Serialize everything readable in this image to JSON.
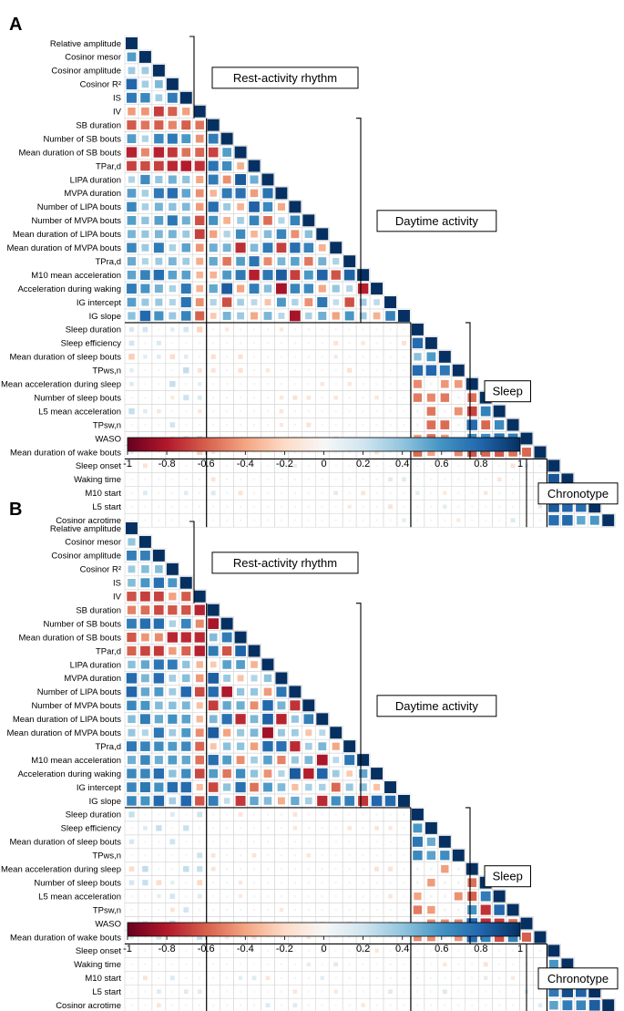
{
  "figure": {
    "variables": [
      "Relative amplitude",
      "Cosinor mesor",
      "Cosinor amplitude",
      "Cosinor R²",
      "IS",
      "IV",
      "SB duration",
      "Number of SB bouts",
      "Mean duration of SB bouts",
      "TPar,d",
      "LIPA duration",
      "MVPA duration",
      "Number of LIPA bouts",
      "Number of MVPA bouts",
      "Mean duration of LIPA bouts",
      "Mean duration of MVPA bouts",
      "TPra,d",
      "M10 mean acceleration",
      "Acceleration during waking",
      "IG intercept",
      "IG slope",
      "Sleep duration",
      "Sleep efficiency",
      "Mean duration of sleep bouts",
      "TPws,n",
      "Mean acceleration during sleep",
      "Number of sleep bouts",
      "L5 mean acceleration",
      "TPsw,n",
      "WASO",
      "Mean duration of wake bouts",
      "Sleep onset",
      "Waking time",
      "M10 start",
      "L5 start",
      "Cosinor acrotime"
    ],
    "groups": [
      {
        "label": "Rest-activity rhythm",
        "start": 0,
        "end": 5
      },
      {
        "label": "Daytime activity",
        "start": 6,
        "end": 20
      },
      {
        "label": "Sleep",
        "start": 21,
        "end": 30
      },
      {
        "label": "Chronotype",
        "start": 31,
        "end": 35
      }
    ],
    "colorbar": {
      "ticks": [
        "-1",
        "-0.8",
        "-0.6",
        "-0.4",
        "-0.2",
        "0",
        "0.2",
        "0.4",
        "0.6",
        "0.8",
        "1"
      ],
      "colors": [
        "#67001f",
        "#b2182b",
        "#d6604d",
        "#f4a582",
        "#fddbc7",
        "#f7f7f7",
        "#d1e5f0",
        "#92c5de",
        "#4393c3",
        "#2166ac",
        "#053061"
      ]
    }
  },
  "chart_data": [
    {
      "type": "heatmap",
      "panel_label": "A",
      "title": "",
      "xlabel": "",
      "ylabel": "",
      "vlim": [
        -1,
        1
      ],
      "layout": "lower-triangular correlation matrix"
    },
    {
      "type": "heatmap",
      "panel_label": "B",
      "title": "",
      "xlabel": "",
      "ylabel": "",
      "vlim": [
        -1,
        1
      ],
      "layout": "lower-triangular correlation matrix"
    }
  ]
}
